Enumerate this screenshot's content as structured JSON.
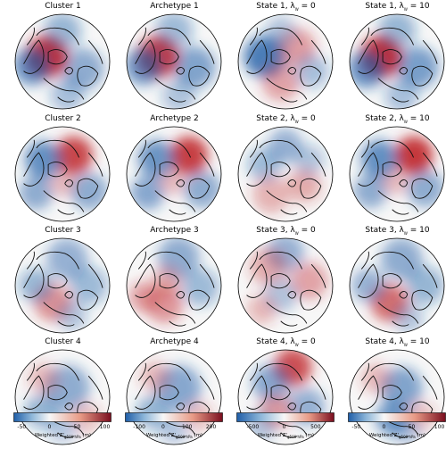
{
  "panels": [
    [
      {
        "title": "Cluster 1",
        "blobs": [
          {
            "u": 0.33,
            "v": 0.45,
            "r": 0.22,
            "v_": 2.6
          },
          {
            "u": 0.18,
            "v": 0.55,
            "r": 0.2,
            "v_": -1.6
          },
          {
            "u": 0.72,
            "v": 0.58,
            "r": 0.22,
            "v_": -1.0
          },
          {
            "u": 0.5,
            "v": 0.18,
            "r": 0.2,
            "v_": -0.8
          },
          {
            "u": 0.55,
            "v": 0.85,
            "r": 0.18,
            "v_": -0.6
          }
        ]
      },
      {
        "title": "Archetype 1",
        "blobs": [
          {
            "u": 0.33,
            "v": 0.45,
            "r": 0.22,
            "v_": 2.4
          },
          {
            "u": 0.18,
            "v": 0.55,
            "r": 0.2,
            "v_": -1.5
          },
          {
            "u": 0.72,
            "v": 0.56,
            "r": 0.22,
            "v_": -1.2
          },
          {
            "u": 0.5,
            "v": 0.17,
            "r": 0.2,
            "v_": -0.7
          },
          {
            "u": 0.55,
            "v": 0.86,
            "r": 0.18,
            "v_": -0.5
          }
        ]
      },
      {
        "title": "State 1, λ",
        "sub": "W",
        "suffix": " = 0",
        "blobs": [
          {
            "u": 0.28,
            "v": 0.45,
            "r": 0.22,
            "v_": -2.0
          },
          {
            "u": 0.62,
            "v": 0.35,
            "r": 0.2,
            "v_": 0.8
          },
          {
            "u": 0.45,
            "v": 0.72,
            "r": 0.2,
            "v_": 0.7
          },
          {
            "u": 0.78,
            "v": 0.6,
            "r": 0.18,
            "v_": -0.6
          },
          {
            "u": 0.45,
            "v": 0.18,
            "r": 0.16,
            "v_": -0.5
          }
        ]
      },
      {
        "title": "State 1, λ",
        "sub": "W",
        "suffix": " = 10",
        "blobs": [
          {
            "u": 0.33,
            "v": 0.45,
            "r": 0.22,
            "v_": 2.8
          },
          {
            "u": 0.18,
            "v": 0.58,
            "r": 0.2,
            "v_": -1.6
          },
          {
            "u": 0.72,
            "v": 0.56,
            "r": 0.22,
            "v_": -1.3
          },
          {
            "u": 0.5,
            "v": 0.17,
            "r": 0.2,
            "v_": -0.8
          },
          {
            "u": 0.55,
            "v": 0.86,
            "r": 0.18,
            "v_": -0.6
          }
        ]
      }
    ],
    [
      {
        "title": "Cluster 2",
        "blobs": [
          {
            "u": 0.62,
            "v": 0.3,
            "r": 0.2,
            "v_": 2.2
          },
          {
            "u": 0.3,
            "v": 0.35,
            "r": 0.2,
            "v_": -1.6
          },
          {
            "u": 0.22,
            "v": 0.7,
            "r": 0.18,
            "v_": -1.0
          },
          {
            "u": 0.78,
            "v": 0.68,
            "r": 0.2,
            "v_": -1.0
          },
          {
            "u": 0.5,
            "v": 0.6,
            "r": 0.14,
            "v_": 0.4
          }
        ]
      },
      {
        "title": "Archetype 2",
        "blobs": [
          {
            "u": 0.66,
            "v": 0.3,
            "r": 0.2,
            "v_": 2.3
          },
          {
            "u": 0.32,
            "v": 0.34,
            "r": 0.2,
            "v_": -1.5
          },
          {
            "u": 0.22,
            "v": 0.7,
            "r": 0.18,
            "v_": -1.1
          },
          {
            "u": 0.8,
            "v": 0.66,
            "r": 0.2,
            "v_": -1.0
          },
          {
            "u": 0.48,
            "v": 0.58,
            "r": 0.14,
            "v_": 0.4
          }
        ]
      },
      {
        "title": "State 2, λ",
        "sub": "W",
        "suffix": " = 0",
        "blobs": [
          {
            "u": 0.5,
            "v": 0.2,
            "r": 0.18,
            "v_": -0.9
          },
          {
            "u": 0.28,
            "v": 0.4,
            "r": 0.18,
            "v_": -0.7
          },
          {
            "u": 0.7,
            "v": 0.62,
            "r": 0.18,
            "v_": 0.6
          },
          {
            "u": 0.35,
            "v": 0.72,
            "r": 0.2,
            "v_": 0.5
          },
          {
            "u": 0.75,
            "v": 0.35,
            "r": 0.16,
            "v_": -0.5
          }
        ]
      },
      {
        "title": "State 2, λ",
        "sub": "W",
        "suffix": " = 10",
        "blobs": [
          {
            "u": 0.68,
            "v": 0.3,
            "r": 0.2,
            "v_": 2.4
          },
          {
            "u": 0.32,
            "v": 0.34,
            "r": 0.2,
            "v_": -1.6
          },
          {
            "u": 0.22,
            "v": 0.68,
            "r": 0.18,
            "v_": -1.0
          },
          {
            "u": 0.8,
            "v": 0.65,
            "r": 0.2,
            "v_": -1.0
          },
          {
            "u": 0.48,
            "v": 0.58,
            "r": 0.14,
            "v_": 0.4
          }
        ]
      }
    ],
    [
      {
        "title": "Cluster 3",
        "blobs": [
          {
            "u": 0.4,
            "v": 0.68,
            "r": 0.2,
            "v_": 1.0
          },
          {
            "u": 0.55,
            "v": 0.22,
            "r": 0.22,
            "v_": -0.9
          },
          {
            "u": 0.22,
            "v": 0.5,
            "r": 0.18,
            "v_": -0.8
          },
          {
            "u": 0.78,
            "v": 0.5,
            "r": 0.2,
            "v_": -0.7
          },
          {
            "u": 0.6,
            "v": 0.82,
            "r": 0.16,
            "v_": -0.5
          }
        ]
      },
      {
        "title": "Archetype 3",
        "blobs": [
          {
            "u": 0.4,
            "v": 0.7,
            "r": 0.2,
            "v_": 0.9
          },
          {
            "u": 0.55,
            "v": 0.2,
            "r": 0.22,
            "v_": -1.0
          },
          {
            "u": 0.18,
            "v": 0.62,
            "r": 0.16,
            "v_": 0.8
          },
          {
            "u": 0.78,
            "v": 0.52,
            "r": 0.2,
            "v_": -0.7
          },
          {
            "u": 0.42,
            "v": 0.45,
            "r": 0.16,
            "v_": 0.5
          }
        ]
      },
      {
        "title": "State 3, λ",
        "sub": "W",
        "suffix": " = 0",
        "blobs": [
          {
            "u": 0.5,
            "v": 0.15,
            "r": 0.2,
            "v_": -0.9
          },
          {
            "u": 0.32,
            "v": 0.3,
            "r": 0.2,
            "v_": 0.6
          },
          {
            "u": 0.75,
            "v": 0.45,
            "r": 0.2,
            "v_": 0.7
          },
          {
            "u": 0.45,
            "v": 0.6,
            "r": 0.18,
            "v_": -0.5
          },
          {
            "u": 0.25,
            "v": 0.75,
            "r": 0.16,
            "v_": 0.4
          }
        ]
      },
      {
        "title": "State 3, λ",
        "sub": "W",
        "suffix": " = 10",
        "blobs": [
          {
            "u": 0.42,
            "v": 0.68,
            "r": 0.2,
            "v_": 1.6
          },
          {
            "u": 0.55,
            "v": 0.22,
            "r": 0.22,
            "v_": -1.0
          },
          {
            "u": 0.2,
            "v": 0.5,
            "r": 0.18,
            "v_": -0.9
          },
          {
            "u": 0.8,
            "v": 0.5,
            "r": 0.2,
            "v_": -0.8
          },
          {
            "u": 0.62,
            "v": 0.84,
            "r": 0.16,
            "v_": -0.5
          }
        ]
      }
    ],
    [
      {
        "title": "Cluster 4",
        "blobs": [
          {
            "u": 0.55,
            "v": 0.4,
            "r": 0.24,
            "v_": -1.0
          },
          {
            "u": 0.28,
            "v": 0.65,
            "r": 0.18,
            "v_": -0.8
          },
          {
            "u": 0.3,
            "v": 0.3,
            "r": 0.16,
            "v_": 0.4
          },
          {
            "u": 0.75,
            "v": 0.72,
            "r": 0.16,
            "v_": 0.3
          },
          {
            "u": 0.5,
            "v": 0.82,
            "r": 0.16,
            "v_": -0.4
          }
        ]
      },
      {
        "title": "Archetype 4",
        "blobs": [
          {
            "u": 0.55,
            "v": 0.4,
            "r": 0.24,
            "v_": -1.1
          },
          {
            "u": 0.28,
            "v": 0.66,
            "r": 0.18,
            "v_": -0.8
          },
          {
            "u": 0.3,
            "v": 0.28,
            "r": 0.16,
            "v_": 0.4
          },
          {
            "u": 0.76,
            "v": 0.7,
            "r": 0.16,
            "v_": 0.3
          },
          {
            "u": 0.5,
            "v": 0.84,
            "r": 0.16,
            "v_": -0.4
          }
        ]
      },
      {
        "title": "State 4, λ",
        "sub": "W",
        "suffix": " = 0",
        "blobs": [
          {
            "u": 0.58,
            "v": 0.18,
            "r": 0.2,
            "v_": 2.0
          },
          {
            "u": 0.35,
            "v": 0.35,
            "r": 0.2,
            "v_": -1.1
          },
          {
            "u": 0.72,
            "v": 0.6,
            "r": 0.2,
            "v_": -0.9
          },
          {
            "u": 0.4,
            "v": 0.65,
            "r": 0.18,
            "v_": 0.8
          },
          {
            "u": 0.25,
            "v": 0.8,
            "r": 0.16,
            "v_": -0.5
          }
        ]
      },
      {
        "title": "State 4, λ",
        "sub": "W",
        "suffix": " = 10",
        "blobs": [
          {
            "u": 0.55,
            "v": 0.4,
            "r": 0.22,
            "v_": -1.2
          },
          {
            "u": 0.45,
            "v": 0.72,
            "r": 0.18,
            "v_": -1.4
          },
          {
            "u": 0.28,
            "v": 0.3,
            "r": 0.16,
            "v_": 0.4
          },
          {
            "u": 0.75,
            "v": 0.7,
            "r": 0.16,
            "v_": 0.3
          },
          {
            "u": 0.6,
            "v": 0.85,
            "r": 0.16,
            "v_": -0.4
          }
        ]
      }
    ]
  ],
  "colorbars": [
    {
      "ticks": [
        "-50",
        "0",
        "50",
        "100"
      ],
      "tick_values": [
        -50,
        0,
        50,
        100
      ],
      "range": [
        -65,
        112
      ],
      "label_main": "Weighted Z'",
      "label_sub": "g500 hPa",
      "label_unit": " (m)"
    },
    {
      "ticks": [
        "-100",
        "0",
        "100",
        "200"
      ],
      "tick_values": [
        -100,
        0,
        100,
        200
      ],
      "range": [
        -160,
        250
      ],
      "label_main": "Weighted Z'",
      "label_sub": "g500 hPa",
      "label_unit": " (m)"
    },
    {
      "ticks": [
        "-500",
        "0",
        "500"
      ],
      "tick_values": [
        -500,
        0,
        500
      ],
      "range": [
        -760,
        800
      ],
      "label_main": "Weighted Z'",
      "label_sub": "g500 hPa",
      "label_unit": " (m)"
    },
    {
      "ticks": [
        "-50",
        "0",
        "50",
        "100"
      ],
      "tick_values": [
        -50,
        0,
        50,
        100
      ],
      "range": [
        -65,
        112
      ],
      "label_main": "Weighted Z'",
      "label_sub": "g500 hPa",
      "label_unit": " (m)"
    }
  ],
  "colors": {
    "cold": "#1f5ea8",
    "neutral": "#f7f7f7",
    "warm": "#c0282c",
    "coast": "#111111"
  }
}
